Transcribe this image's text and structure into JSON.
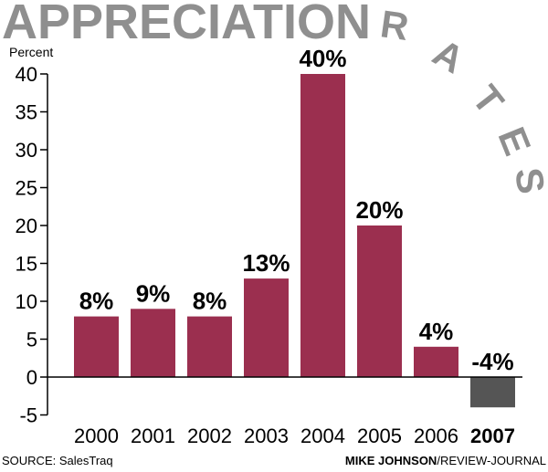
{
  "title": {
    "main": "APPRECIATION",
    "arc": "RATES"
  },
  "footer": {
    "source": "SOURCE: SalesTraq",
    "credit_name": "MIKE JOHNSON",
    "credit_org": "/REVIEW-JOURNAL"
  },
  "colors": {
    "positive_bar": "#9b2f4f",
    "negative_bar": "#555555",
    "title_gray": "#8f8f8f"
  },
  "chart_data": {
    "type": "bar",
    "title": "APPRECIATION RATES",
    "ylabel": "Percent",
    "xlabel": "",
    "categories": [
      "2000",
      "2001",
      "2002",
      "2003",
      "2004",
      "2005",
      "2006",
      "2007"
    ],
    "values": [
      8,
      9,
      8,
      13,
      40,
      20,
      4,
      -4
    ],
    "data_labels": [
      "8%",
      "9%",
      "8%",
      "13%",
      "40%",
      "20%",
      "4%",
      "-4%"
    ],
    "highlight_category": "2007",
    "ylim": [
      -5,
      40
    ],
    "yticks": [
      40,
      35,
      30,
      25,
      20,
      15,
      10,
      5,
      0,
      -5
    ],
    "grid": false,
    "legend": "none"
  }
}
